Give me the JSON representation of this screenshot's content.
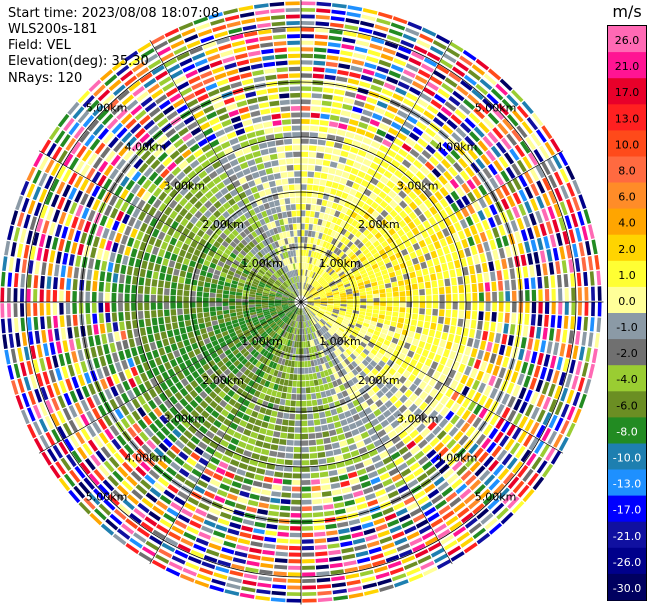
{
  "header": {
    "start_time": "Start time: 2023/08/08 18:07:08",
    "instrument": "WLS200s-181",
    "field": "Field: VEL",
    "elevation": "Elevation(deg): 35.30",
    "nrays": "NRays: 120"
  },
  "colorbar": {
    "unit": "m/s",
    "ticks": [
      "26.0",
      "21.0",
      "17.0",
      "13.0",
      "10.0",
      "8.0",
      "6.0",
      "4.0",
      "2.0",
      "1.0",
      "0.0",
      "-1.0",
      "-2.0",
      "-4.0",
      "-6.0",
      "-8.0",
      "-10.0",
      "-13.0",
      "-17.0",
      "-21.0",
      "-26.0",
      "-30.0"
    ],
    "colors": [
      "#ff69b4",
      "#ff1493",
      "#e8002a",
      "#ff2020",
      "#ff4a1a",
      "#ff6a40",
      "#ff8c28",
      "#ffa500",
      "#ffd400",
      "#ffff33",
      "#ffff99",
      "#8b9aa6",
      "#707070",
      "#9acd32",
      "#6b8e23",
      "#228b22",
      "#1e7fb0",
      "#1e90ff",
      "#0000ff",
      "#1010a0",
      "#00008b",
      "#000060"
    ]
  },
  "chart_data": {
    "type": "ppi",
    "field": "VEL",
    "units": "m/s",
    "vmin": -30.0,
    "vmax": 26.0,
    "range_rings_km": [
      1,
      2,
      3,
      4,
      5
    ],
    "ring_labels": [
      "1.00km",
      "2.00km",
      "3.00km",
      "4.00km",
      "5.00km"
    ],
    "n_rays": 120,
    "elevation_deg": 35.3,
    "max_range_km": 5.5
  }
}
